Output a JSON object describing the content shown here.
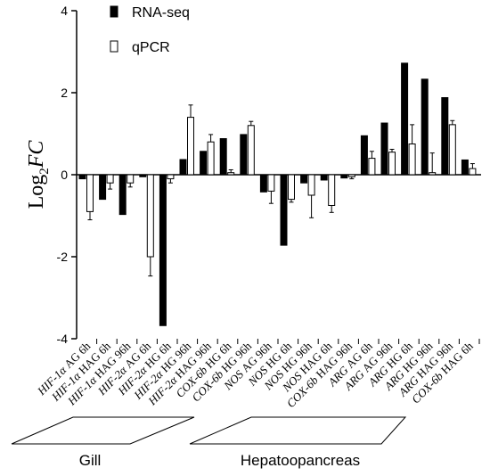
{
  "chart_data": {
    "type": "bar",
    "ylabel_parts": [
      "Log",
      "2",
      "FC"
    ],
    "xlabel": "",
    "ylim": [
      -4,
      4
    ],
    "yticks": [
      "4",
      "2",
      "0",
      "-2",
      "-4"
    ],
    "legend_position": "top-center",
    "categories": [
      {
        "gene": "HIF-1α",
        "cond": "AG 6h"
      },
      {
        "gene": "HIF-1α",
        "cond": "HAG 6h"
      },
      {
        "gene": "HIF-1α",
        "cond": "HAG 96h"
      },
      {
        "gene": "HIF-2α",
        "cond": "AG 6h"
      },
      {
        "gene": "HIF-2α",
        "cond": "HG 6h"
      },
      {
        "gene": "HIF-2α",
        "cond": "HG 96h"
      },
      {
        "gene": "HIF-2α",
        "cond": "HAG 96h"
      },
      {
        "gene": "COX-6b",
        "cond": "HG 6h"
      },
      {
        "gene": "COX-6b",
        "cond": "HG 96h"
      },
      {
        "gene": "NOS",
        "cond": "AG 96h"
      },
      {
        "gene": "NOS",
        "cond": "HG 6h"
      },
      {
        "gene": "NOS",
        "cond": "HG 96h"
      },
      {
        "gene": "NOS",
        "cond": "HAG 6h"
      },
      {
        "gene": "COX-6b",
        "cond": "HAG 96h"
      },
      {
        "gene": "ARG",
        "cond": "AG 6h"
      },
      {
        "gene": "ARG",
        "cond": "AG 96h"
      },
      {
        "gene": "ARG",
        "cond": "HG 6h"
      },
      {
        "gene": "ARG",
        "cond": "HG 96h"
      },
      {
        "gene": "ARG",
        "cond": "HAG 96h"
      },
      {
        "gene": "COX-6b",
        "cond": "HAG 6h"
      }
    ],
    "series": [
      {
        "name": "RNA-seq",
        "color": "#000000",
        "values": [
          -0.1,
          -0.6,
          -0.97,
          -0.05,
          -3.68,
          0.37,
          0.57,
          0.88,
          0.98,
          -0.42,
          -1.72,
          -0.2,
          -0.13,
          -0.08,
          0.95,
          1.26,
          2.72,
          2.33,
          1.88,
          0.36
        ],
        "errors": [
          0,
          0,
          0,
          0,
          0,
          0,
          0,
          0,
          0,
          0,
          0,
          0,
          0,
          0,
          0,
          0,
          0,
          0,
          0,
          0
        ]
      },
      {
        "name": "qPCR",
        "color": "#ffffff",
        "values": [
          -0.9,
          -0.2,
          -0.2,
          -2.0,
          -0.1,
          1.4,
          0.8,
          0.05,
          1.2,
          -0.4,
          -0.6,
          -0.5,
          -0.75,
          -0.05,
          0.4,
          0.55,
          0.75,
          0.05,
          1.22,
          0.15
        ],
        "errors": [
          0.2,
          0.15,
          0.1,
          0.47,
          0.1,
          0.3,
          0.18,
          0.07,
          0.1,
          0.3,
          0.07,
          0.55,
          0.17,
          0.05,
          0.17,
          0.07,
          0.47,
          0.48,
          0.1,
          0.12
        ]
      }
    ],
    "groups": [
      {
        "label": "Gill"
      },
      {
        "label": "Hepatoopancreas"
      }
    ]
  }
}
